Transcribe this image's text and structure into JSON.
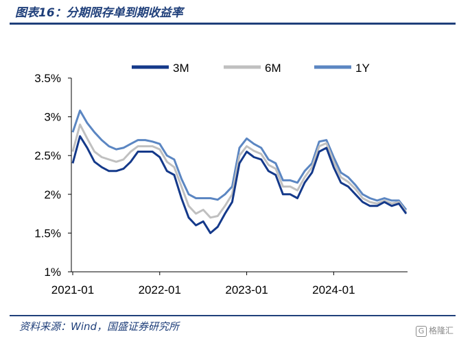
{
  "title": "图表16：分期限存单到期收益率",
  "source": "资料来源：Wind，国盛证券研究所",
  "watermark": "格隆汇",
  "colors": {
    "3M": "#14398a",
    "6M": "#c0c0c0",
    "1Y": "#5b86c2",
    "rule": "#1f3f7a"
  },
  "chart_data": {
    "type": "line",
    "title": "",
    "xlabel": "",
    "ylabel": "",
    "x_ticks": [
      "2021-01",
      "2022-01",
      "2023-01",
      "2024-01"
    ],
    "y_ticks": [
      "1%",
      "1.5%",
      "2%",
      "2.5%",
      "3%",
      "3.5%"
    ],
    "ylim": [
      1.0,
      3.5
    ],
    "legend_position": "top",
    "x": [
      "2021-01",
      "2021-02",
      "2021-03",
      "2021-04",
      "2021-05",
      "2021-06",
      "2021-07",
      "2021-08",
      "2021-09",
      "2021-10",
      "2021-11",
      "2021-12",
      "2022-01",
      "2022-02",
      "2022-03",
      "2022-04",
      "2022-05",
      "2022-06",
      "2022-07",
      "2022-08",
      "2022-09",
      "2022-10",
      "2022-11",
      "2022-12",
      "2023-01",
      "2023-02",
      "2023-03",
      "2023-04",
      "2023-05",
      "2023-06",
      "2023-07",
      "2023-08",
      "2023-09",
      "2023-10",
      "2023-11",
      "2023-12",
      "2024-01",
      "2024-02",
      "2024-03",
      "2024-04",
      "2024-05",
      "2024-06",
      "2024-07",
      "2024-08",
      "2024-09",
      "2024-10",
      "2024-11"
    ],
    "series": [
      {
        "name": "3M",
        "values": [
          2.4,
          2.75,
          2.6,
          2.42,
          2.35,
          2.3,
          2.3,
          2.33,
          2.42,
          2.55,
          2.55,
          2.55,
          2.48,
          2.3,
          2.25,
          1.95,
          1.7,
          1.6,
          1.65,
          1.5,
          1.58,
          1.75,
          1.9,
          2.4,
          2.55,
          2.48,
          2.45,
          2.3,
          2.25,
          2.0,
          2.0,
          1.95,
          2.15,
          2.28,
          2.55,
          2.6,
          2.35,
          2.15,
          2.1,
          2.0,
          1.9,
          1.85,
          1.85,
          1.9,
          1.85,
          1.88,
          1.75
        ]
      },
      {
        "name": "6M",
        "values": [
          2.55,
          2.9,
          2.72,
          2.55,
          2.48,
          2.45,
          2.42,
          2.45,
          2.55,
          2.62,
          2.62,
          2.62,
          2.58,
          2.42,
          2.35,
          2.1,
          1.85,
          1.75,
          1.8,
          1.7,
          1.72,
          1.85,
          2.0,
          2.5,
          2.62,
          2.56,
          2.52,
          2.38,
          2.33,
          2.1,
          2.1,
          2.05,
          2.22,
          2.35,
          2.62,
          2.66,
          2.42,
          2.22,
          2.16,
          2.07,
          1.95,
          1.9,
          1.88,
          1.92,
          1.88,
          1.9,
          1.77
        ]
      },
      {
        "name": "1Y",
        "values": [
          2.8,
          3.08,
          2.92,
          2.8,
          2.7,
          2.62,
          2.58,
          2.6,
          2.65,
          2.7,
          2.7,
          2.68,
          2.65,
          2.5,
          2.45,
          2.2,
          2.0,
          1.95,
          1.95,
          1.95,
          1.93,
          2.0,
          2.1,
          2.6,
          2.72,
          2.65,
          2.6,
          2.45,
          2.4,
          2.18,
          2.18,
          2.15,
          2.3,
          2.4,
          2.68,
          2.7,
          2.48,
          2.28,
          2.22,
          2.12,
          2.0,
          1.95,
          1.92,
          1.95,
          1.92,
          1.92,
          1.8
        ]
      }
    ]
  }
}
